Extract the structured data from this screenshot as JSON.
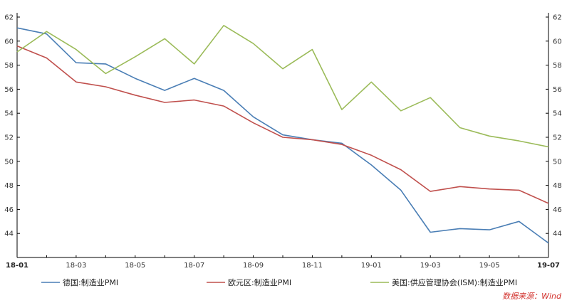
{
  "chart_data": {
    "type": "line",
    "x": [
      "18-01",
      "18-02",
      "18-03",
      "18-04",
      "18-05",
      "18-06",
      "18-07",
      "18-08",
      "18-09",
      "18-10",
      "18-11",
      "18-12",
      "19-01",
      "19-02",
      "19-03",
      "19-04",
      "19-05",
      "19-06",
      "19-07"
    ],
    "x_tick_labels": [
      "18-01",
      "18-03",
      "18-05",
      "18-07",
      "18-09",
      "18-11",
      "19-01",
      "19-03",
      "19-05",
      "19-07"
    ],
    "ylim": [
      42,
      62
    ],
    "y_ticks": [
      44,
      46,
      48,
      50,
      52,
      54,
      56,
      58,
      60,
      62
    ],
    "grid": false,
    "legend_position": "bottom",
    "series": [
      {
        "name": "德国:制造业PMI",
        "color": "#4a7eb5",
        "values": [
          61.1,
          60.6,
          58.2,
          58.1,
          56.9,
          55.9,
          56.9,
          55.9,
          53.7,
          52.2,
          51.8,
          51.5,
          49.7,
          47.6,
          44.1,
          44.4,
          44.3,
          45.0,
          43.2
        ]
      },
      {
        "name": "欧元区:制造业PMI",
        "color": "#c0504d",
        "values": [
          59.6,
          58.6,
          56.6,
          56.2,
          55.5,
          54.9,
          55.1,
          54.6,
          53.2,
          52.0,
          51.8,
          51.4,
          50.5,
          49.3,
          47.5,
          47.9,
          47.7,
          47.6,
          46.5
        ]
      },
      {
        "name": "美国:供应管理协会(ISM):制造业PMI",
        "color": "#9bbb59",
        "values": [
          59.1,
          60.8,
          59.3,
          57.3,
          58.7,
          60.2,
          58.1,
          61.3,
          59.8,
          57.7,
          59.3,
          54.3,
          56.6,
          54.2,
          55.3,
          52.8,
          52.1,
          51.7,
          51.2
        ]
      }
    ]
  },
  "source_note": "数据来源：Wind"
}
